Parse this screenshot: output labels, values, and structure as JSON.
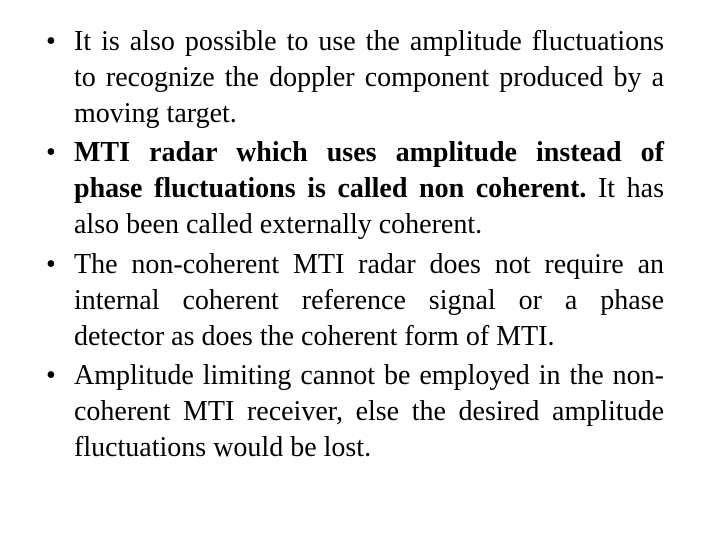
{
  "typography": {
    "font_family": "Times New Roman",
    "font_size_pt": 21,
    "line_height": 1.28,
    "text_align": "justify",
    "text_color": "#000000",
    "background_color": "#ffffff",
    "bullet_glyph": "•"
  },
  "bullets": [
    {
      "plain": "It is also possible to use the amplitude fluctuations to recognize the doppler component produced by a moving target.",
      "bold_runs": []
    },
    {
      "plain_leading": "",
      "bold_main": "MTI radar which uses amplitude instead of phase fluctuations is called non coherent.",
      "plain_trailing": " It has also been called externally coherent."
    },
    {
      "plain": "The non-coherent MTI radar does not require an internal coherent reference signal or a phase detector as does the coherent form of MTI.",
      "bold_runs": []
    },
    {
      "plain": "Amplitude limiting cannot be employed in the non-coherent MTI receiver, else the desired amplitude fluctuations would be lost.",
      "bold_runs": []
    }
  ]
}
